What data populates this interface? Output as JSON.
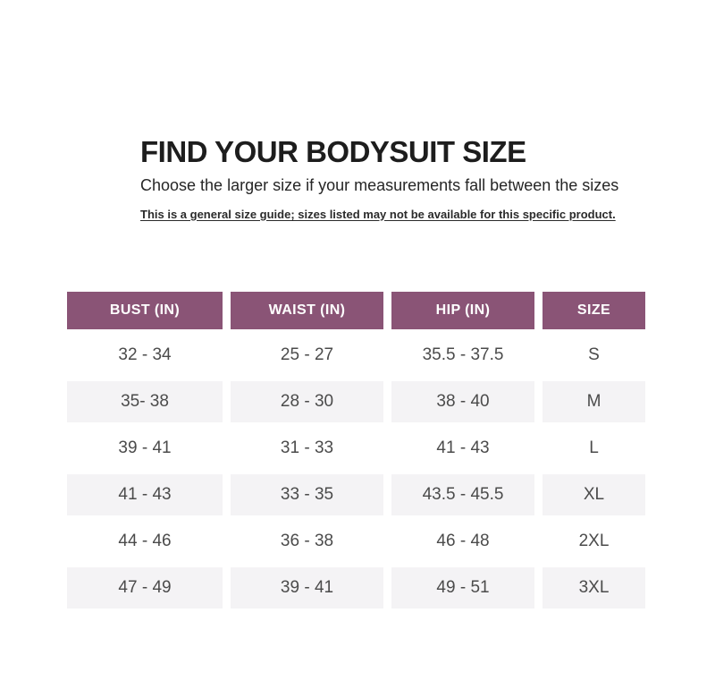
{
  "theme": {
    "accent": "#8a5476",
    "alt_row": "#f4f3f5",
    "header_text": "#ffffff",
    "body_text": "#4b4b4b",
    "title_text": "#1d1d1d"
  },
  "header": {
    "title": "FIND YOUR BODYSUIT SIZE",
    "subtitle": "Choose the larger size if your measurements fall between the sizes",
    "note": "This is a general size guide; sizes listed may not be available for this specific product."
  },
  "size_table": {
    "columns": [
      "BUST (IN)",
      "WAIST (IN)",
      "HIP (IN)",
      "SIZE"
    ],
    "rows": [
      {
        "bust": "32 - 34",
        "waist": "25 - 27",
        "hip": "35.5 - 37.5",
        "size": "S"
      },
      {
        "bust": "35- 38",
        "waist": "28 - 30",
        "hip": "38 - 40",
        "size": "M"
      },
      {
        "bust": "39 - 41",
        "waist": "31 - 33",
        "hip": "41 - 43",
        "size": "L"
      },
      {
        "bust": "41 - 43",
        "waist": "33 - 35",
        "hip": "43.5 - 45.5",
        "size": "XL"
      },
      {
        "bust": "44 - 46",
        "waist": "36 - 38",
        "hip": "46 - 48",
        "size": "2XL"
      },
      {
        "bust": "47 - 49",
        "waist": "39 - 41",
        "hip": "49 - 51",
        "size": "3XL"
      }
    ]
  }
}
